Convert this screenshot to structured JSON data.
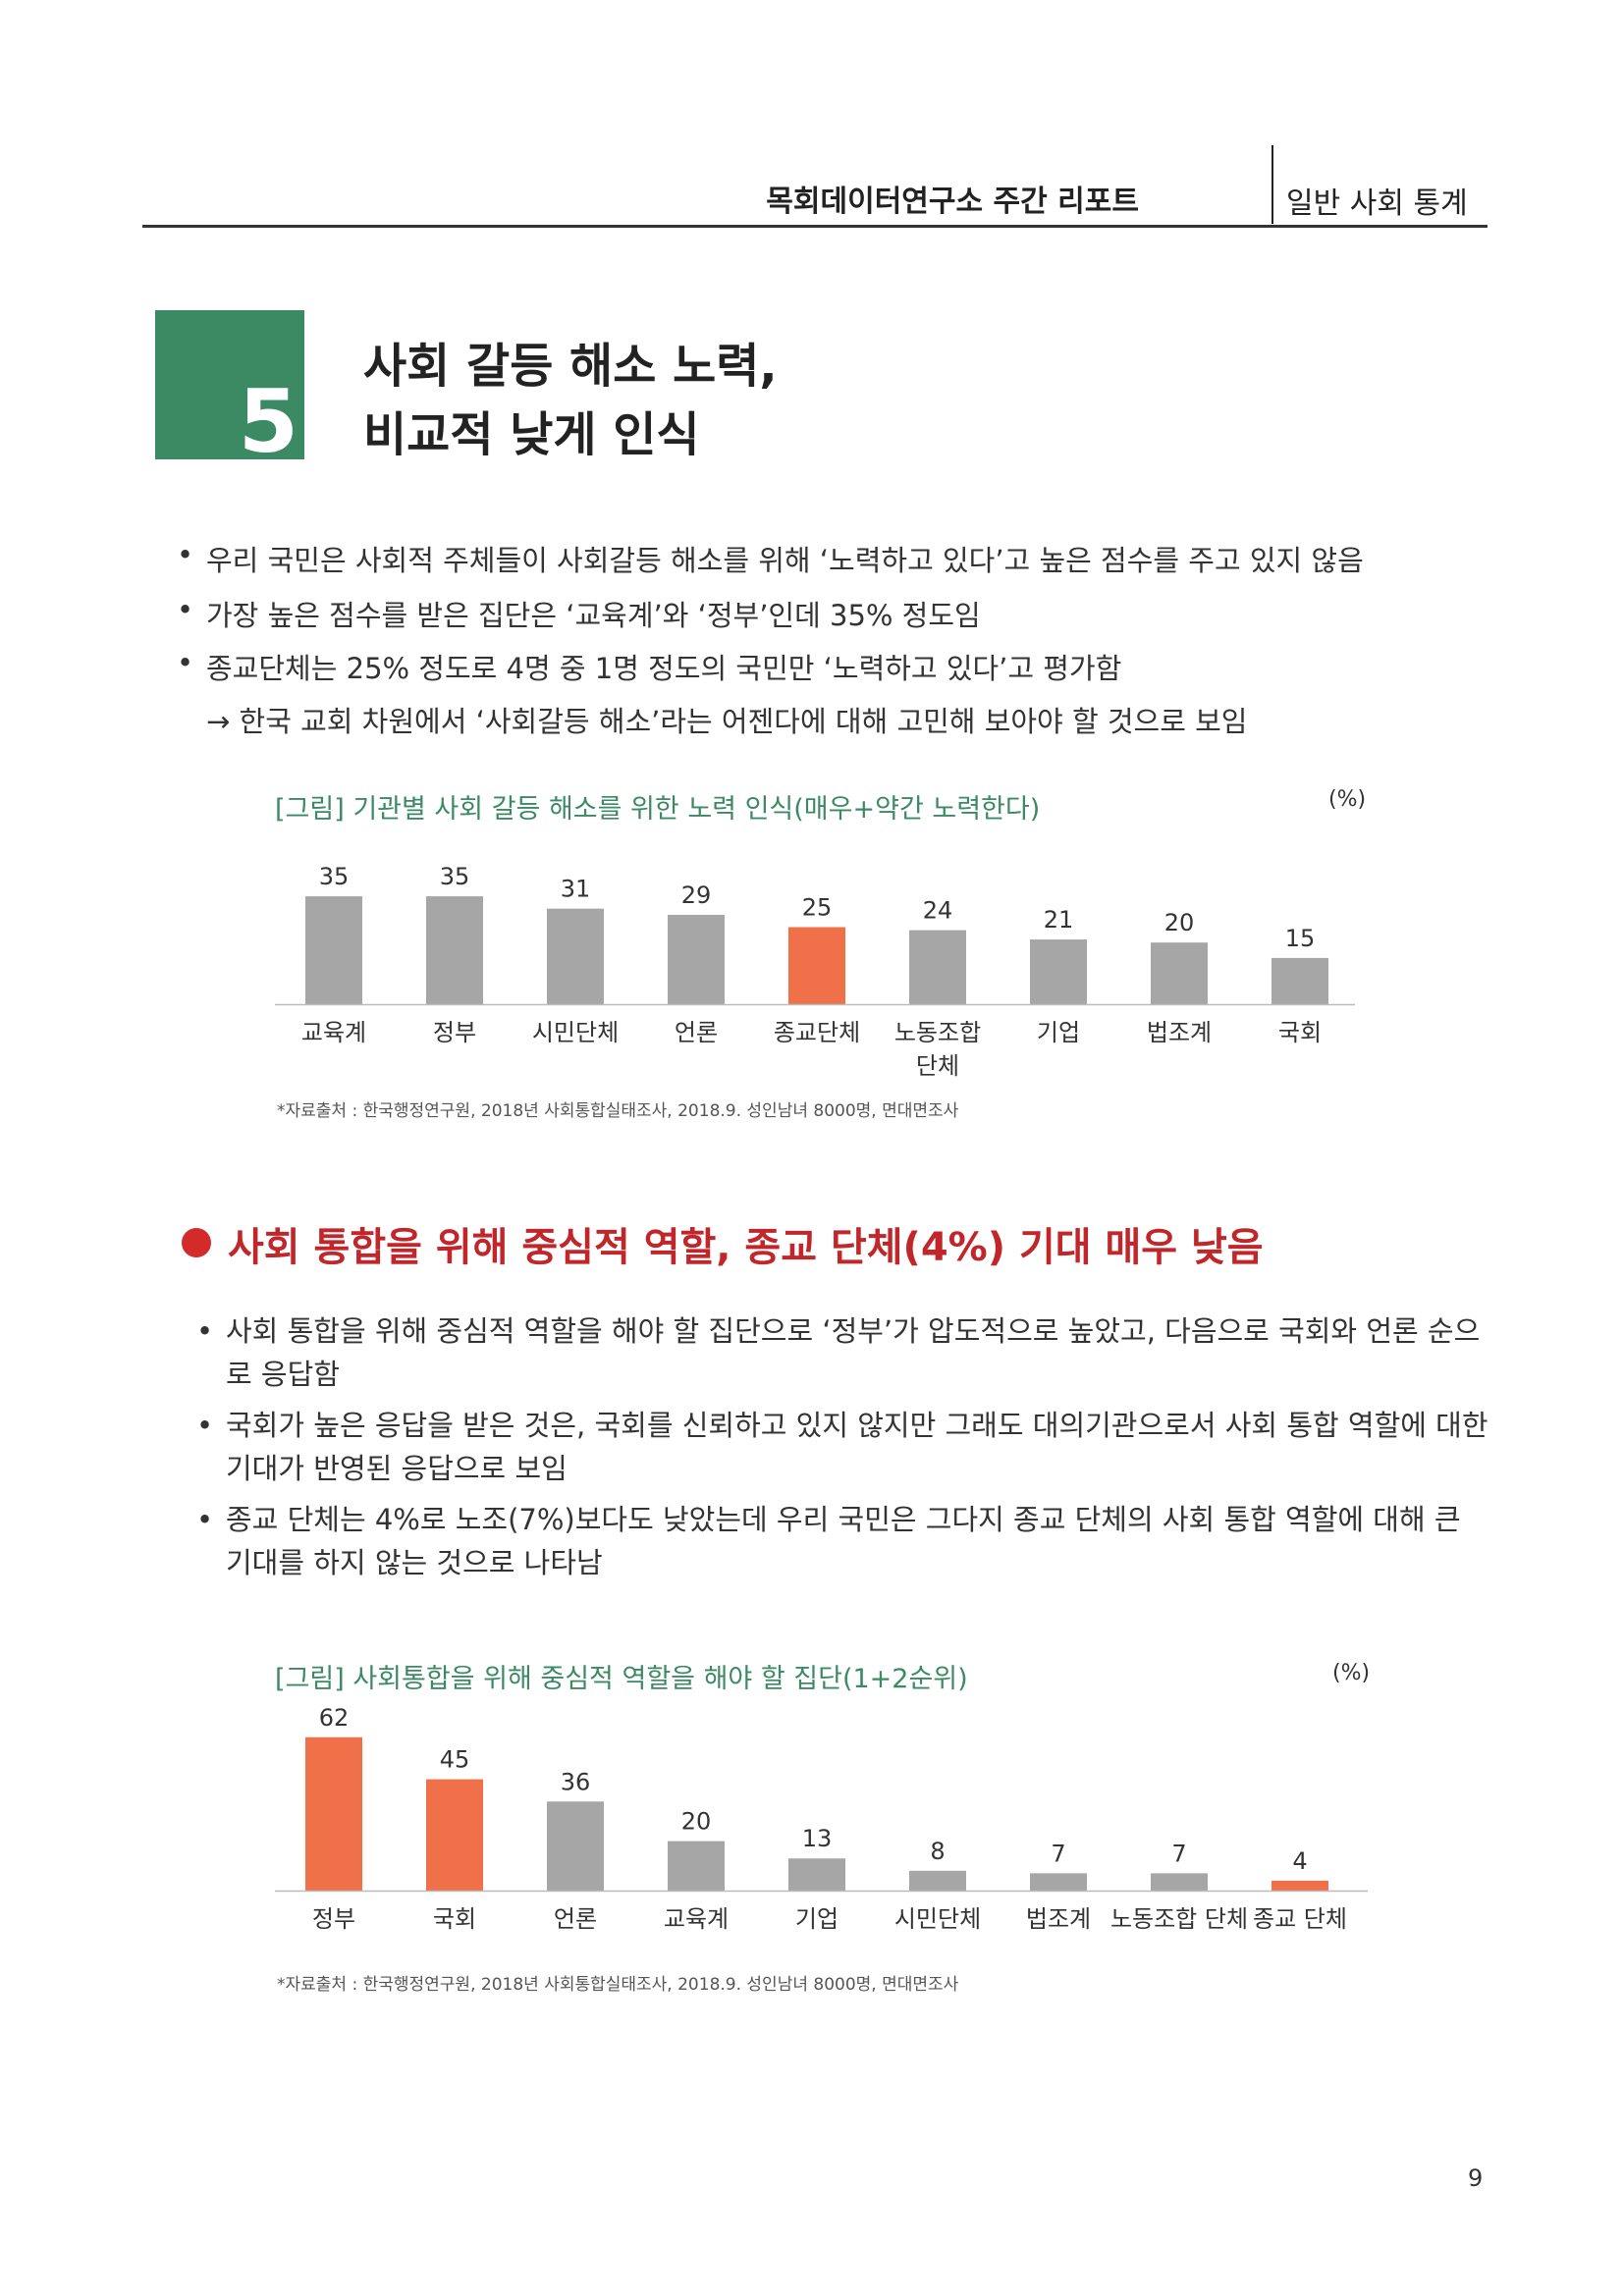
{
  "header": {
    "report_title": "목회데이터연구소 주간 리포트",
    "category": "일반 사회 통계"
  },
  "section": {
    "number": "5",
    "title_line1": "사회 갈등 해소 노력,",
    "title_line2": "비교적 낮게 인식"
  },
  "bullets1": [
    "우리 국민은 사회적 주체들이 사회갈등 해소를 위해 ‘노력하고 있다’고 높은 점수를 주고 있지 않음",
    "가장 높은 점수를 받은 집단은 ‘교육계’와 ‘정부’인데 35% 정도임",
    "종교단체는 25% 정도로 4명 중 1명 정도의 국민만 ‘노력하고 있다’고 평가함"
  ],
  "arrow_note": "→ 한국 교회 차원에서 ‘사회갈등 해소’라는 어젠다에 대해 고민해 보아야 할 것으로 보임",
  "figure1": {
    "caption": "[그림] 기관별 사회 갈등 해소를 위한 노력 인식(매우+약간 노력한다)",
    "unit": "(%)",
    "source": "*자료출처 : 한국행정연구원, 2018년 사회통합실태조사, 2018.9. 성인남녀 8000명, 면대면조사"
  },
  "subsection": {
    "heading": "사회 통합을 위해 중심적 역할, 종교 단체(4%) 기대 매우 낮음"
  },
  "bullets2": [
    {
      "line1": "사회 통합을 위해 중심적 역할을 해야 할 집단으로 ‘정부’가 압도적으로 높았고, 다음으로 국회와 언론 순으",
      "line2": "로 응답함"
    },
    {
      "line1": "국회가 높은 응답을 받은 것은, 국회를 신뢰하고 있지 않지만 그래도 대의기관으로서 사회 통합 역할에 대한",
      "line2": "기대가 반영된 응답으로 보임"
    },
    {
      "line1": "종교 단체는 4%로 노조(7%)보다도 낮았는데 우리 국민은 그다지 종교 단체의 사회 통합 역할에 대해 큰",
      "line2": "기대를 하지 않는 것으로 나타남"
    }
  ],
  "figure2": {
    "caption": "[그림] 사회통합을 위해 중심적 역할을 해야 할 집단(1+2순위)",
    "unit": "(%)",
    "source": "*자료출처 : 한국행정연구원, 2018년 사회통합실태조사, 2018.9. 성인남녀 8000명, 면대면조사"
  },
  "page_number": "9",
  "chart_data": [
    {
      "type": "bar",
      "title": "[그림] 기관별 사회 갈등 해소를 위한 노력 인식(매우+약간 노력한다)",
      "categories": [
        "교육계",
        "정부",
        "시민단체",
        "언론",
        "종교단체",
        "노동조합 단체",
        "기업",
        "법조계",
        "국회"
      ],
      "category_lines": [
        [
          "교육계"
        ],
        [
          "정부"
        ],
        [
          "시민단체"
        ],
        [
          "언론"
        ],
        [
          "종교단체"
        ],
        [
          "노동조합",
          "단체"
        ],
        [
          "기업"
        ],
        [
          "법조계"
        ],
        [
          "국회"
        ]
      ],
      "values": [
        35,
        35,
        31,
        29,
        25,
        24,
        21,
        20,
        15
      ],
      "highlight_index": [
        4
      ],
      "colors": {
        "default": "#a6a6a6",
        "highlight": "#f0704a"
      },
      "ylabel": "(%)",
      "ylim": [
        0,
        40
      ],
      "grid": false,
      "legend": "none"
    },
    {
      "type": "bar",
      "title": "[그림] 사회통합을 위해 중심적 역할을 해야 할 집단(1+2순위)",
      "categories": [
        "정부",
        "국회",
        "언론",
        "교육계",
        "기업",
        "시민단체",
        "법조계",
        "노동조합 단체",
        "종교 단체"
      ],
      "category_lines": [
        [
          "정부"
        ],
        [
          "국회"
        ],
        [
          "언론"
        ],
        [
          "교육계"
        ],
        [
          "기업"
        ],
        [
          "시민단체"
        ],
        [
          "법조계"
        ],
        [
          "노동조합 단체"
        ],
        [
          "종교 단체"
        ]
      ],
      "values": [
        62,
        45,
        36,
        20,
        13,
        8,
        7,
        7,
        4
      ],
      "highlight_index": [
        0,
        1,
        8
      ],
      "colors": {
        "default": "#a6a6a6",
        "highlight": "#f0704a"
      },
      "ylabel": "(%)",
      "ylim": [
        0,
        70
      ],
      "grid": false,
      "legend": "none"
    }
  ]
}
